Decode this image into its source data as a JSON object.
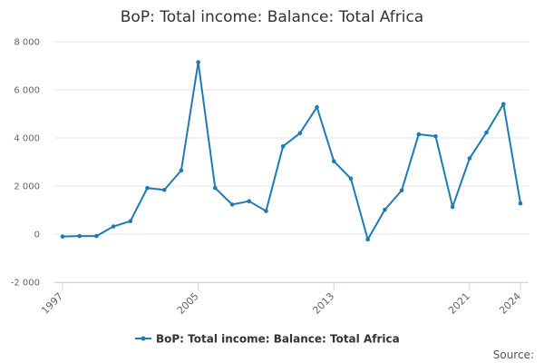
{
  "chart_data": {
    "type": "line",
    "title": "BoP: Total income: Balance: Total Africa",
    "xlabel": "",
    "ylabel": "",
    "x": [
      1997,
      1998,
      1999,
      2000,
      2001,
      2002,
      2003,
      2004,
      2005,
      2006,
      2007,
      2008,
      2009,
      2010,
      2011,
      2012,
      2013,
      2014,
      2015,
      2016,
      2017,
      2018,
      2019,
      2020,
      2021,
      2022,
      2023,
      2024
    ],
    "series": [
      {
        "name": "BoP: Total income: Balance: Total Africa",
        "color": "#1f7ab5",
        "values": [
          -100,
          -80,
          -80,
          320,
          540,
          1920,
          1840,
          2650,
          7150,
          1920,
          1230,
          1370,
          960,
          3650,
          4200,
          5280,
          3030,
          2310,
          -220,
          1010,
          1820,
          4150,
          4070,
          1130,
          3150,
          4230,
          5410,
          1280
        ]
      }
    ],
    "ylim": [
      -2000,
      8000
    ],
    "yticks": [
      -2000,
      0,
      2000,
      4000,
      6000,
      8000
    ],
    "ytick_labels": [
      "-2 000",
      "0",
      "2 000",
      "4 000",
      "6 000",
      "8 000"
    ],
    "xticks": [
      1997,
      2005,
      2013,
      2021,
      2024
    ],
    "xtick_labels": [
      "1997",
      "2005",
      "2013",
      "2021",
      "2024"
    ],
    "grid": true,
    "legend": "bottom-center",
    "source_label": "Source:"
  }
}
